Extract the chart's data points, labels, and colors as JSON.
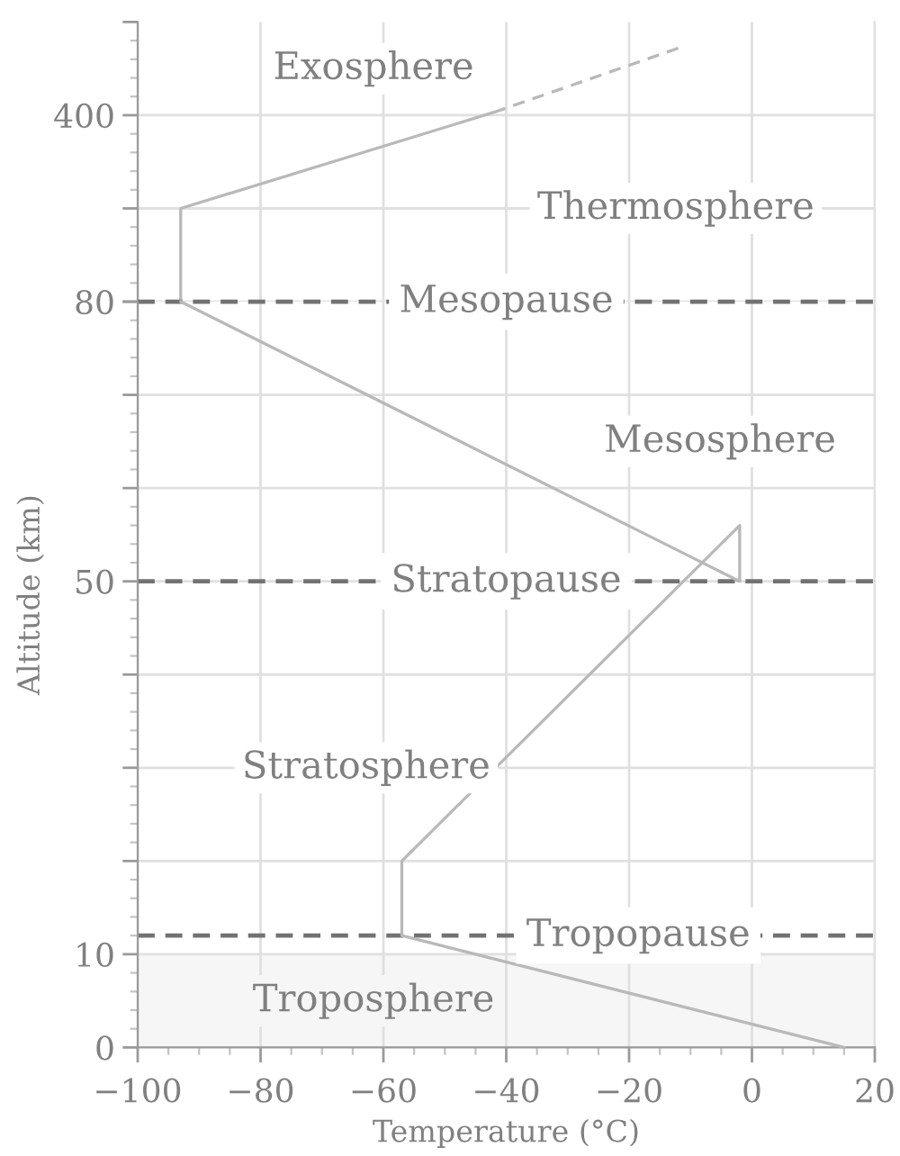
{
  "chart_data": [
    {
      "type": "line",
      "series": [
        {
          "color": "#b9b9b9",
          "x": [
            -93,
            -93,
            -42
          ],
          "values": [
            80,
            240,
            405
          ]
        },
        {
          "color": "#b9b9b9",
          "line_style": "dashed",
          "x": [
            -42,
            -12
          ],
          "values": [
            405,
            515
          ]
        }
      ],
      "xlim": [
        -100,
        20
      ],
      "xticks": [
        {
          "value": -100,
          "label": null
        },
        {
          "value": -80,
          "label": null
        },
        {
          "value": -60,
          "label": null
        },
        {
          "value": -40,
          "label": null
        },
        {
          "value": -20,
          "label": null
        },
        {
          "value": 0,
          "label": null
        },
        {
          "value": 20,
          "label": null
        }
      ],
      "ylim": [
        80,
        560
      ],
      "yticks": [
        80,
        {
          "value": 240,
          "label": null
        },
        400,
        {
          "value": 560,
          "label": null
        }
      ],
      "tick_labels": "y",
      "grid": true,
      "annotations": [
        "Exosphere",
        "Thermosphere"
      ]
    },
    {
      "type": "line",
      "xlabel": "Temperature (°C)",
      "ylabel": "Altitude (km)",
      "series": [
        {
          "color": "#b9b9b9",
          "x": [
            15,
            -57,
            -57,
            -2,
            -2,
            -93
          ],
          "values": [
            0,
            12,
            20,
            56,
            50,
            80
          ]
        }
      ],
      "xlim": [
        -100,
        20
      ],
      "xticks": [
        {
          "value": -100,
          "label": "−100"
        },
        {
          "value": -80,
          "label": "−80"
        },
        {
          "value": -60,
          "label": "−60"
        },
        {
          "value": -40,
          "label": "−40"
        },
        {
          "value": -20,
          "label": "−20"
        },
        0,
        20
      ],
      "ylim": [
        0,
        80
      ],
      "yticks": [
        0,
        10,
        {
          "value": 20,
          "label": null
        },
        {
          "value": 30,
          "label": null
        },
        {
          "value": 40,
          "label": null
        },
        50,
        {
          "value": 60,
          "label": null
        },
        {
          "value": 70,
          "label": null
        },
        {
          "value": 80,
          "label": null
        }
      ],
      "grid": true,
      "ref_lines": [
        {
          "axis": "y",
          "value": 80,
          "label": "Mesopause",
          "color": "#727272",
          "line_style": "dashed"
        },
        {
          "axis": "y",
          "value": 50,
          "label": "Stratopause",
          "color": "#727272",
          "line_style": "dashed"
        },
        {
          "axis": "y",
          "value": 12,
          "label": "Tropopause",
          "color": "#727272",
          "line_style": "dashed"
        }
      ],
      "bands": [
        {
          "axis": "y",
          "from": 0,
          "to": 10,
          "color": "#f6f6f6"
        }
      ],
      "annotations": [
        "Mesosphere",
        "Stratosphere",
        "Troposphere"
      ]
    }
  ]
}
